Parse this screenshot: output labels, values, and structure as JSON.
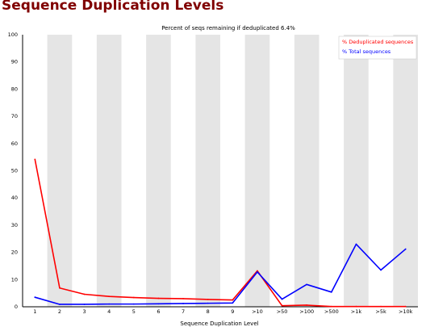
{
  "page": {
    "title": "Sequence Duplication Levels"
  },
  "chart_data": {
    "type": "line",
    "title": "Percent of seqs remaining if deduplicated 6.4%",
    "xlabel": "Sequence Duplication Level",
    "ylabel": "",
    "categories": [
      "1",
      "2",
      "3",
      "4",
      "5",
      "6",
      "7",
      "8",
      "9",
      ">10",
      ">50",
      ">100",
      ">500",
      ">1k",
      ">5k",
      ">10k"
    ],
    "ylim": [
      0,
      100
    ],
    "yticks": [
      0,
      10,
      20,
      30,
      40,
      50,
      60,
      70,
      80,
      90,
      100
    ],
    "grid": "alternating vertical bands",
    "legend_position": "top-right",
    "series": [
      {
        "name": "% Deduplicated sequences",
        "color": "#ff0000",
        "values": [
          54.2,
          6.9,
          4.6,
          3.8,
          3.4,
          3.1,
          3.0,
          2.7,
          2.5,
          13.2,
          0.4,
          0.6,
          0.1,
          0.1,
          0.1,
          0.1
        ]
      },
      {
        "name": "% Total sequences",
        "color": "#0000ff",
        "values": [
          3.5,
          0.9,
          0.9,
          1.0,
          1.0,
          1.1,
          1.2,
          1.3,
          1.4,
          12.8,
          2.8,
          8.2,
          5.4,
          23.0,
          13.5,
          21.2
        ]
      }
    ]
  }
}
